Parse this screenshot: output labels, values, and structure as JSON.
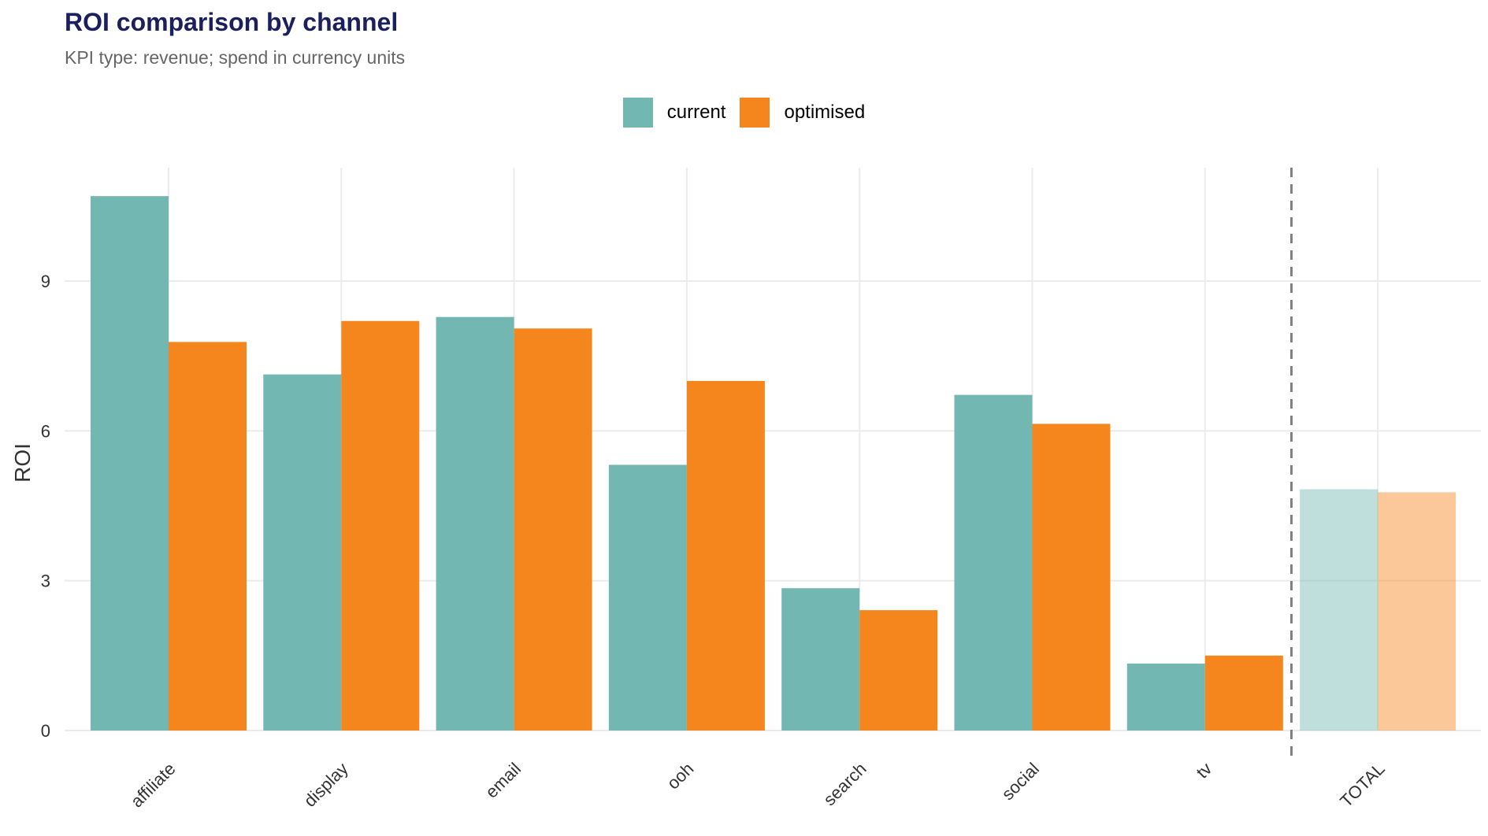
{
  "title": "ROI comparison by channel",
  "subtitle": "KPI type: revenue; spend in currency units",
  "legend": [
    {
      "label": "current",
      "color": "#72b7b2"
    },
    {
      "label": "optimised",
      "color": "#f5851d"
    }
  ],
  "chart_data": {
    "type": "bar",
    "title": "ROI comparison by channel",
    "subtitle": "KPI type: revenue; spend in currency units",
    "xlabel": "",
    "ylabel": "ROI",
    "ylim": [
      0,
      11.3
    ],
    "yticks": [
      0,
      3,
      6,
      9
    ],
    "categories": [
      "affiliate",
      "display",
      "email",
      "ooh",
      "search",
      "social",
      "tv",
      "TOTAL"
    ],
    "series": [
      {
        "name": "current",
        "color": "#72b7b2",
        "values": [
          10.7,
          7.13,
          8.28,
          5.32,
          2.85,
          6.72,
          1.34,
          4.83
        ]
      },
      {
        "name": "optimised",
        "color": "#f5851d",
        "values": [
          7.78,
          8.2,
          8.05,
          7.0,
          2.41,
          6.14,
          1.5,
          4.77
        ]
      }
    ],
    "highlight_faded": [
      "TOTAL"
    ],
    "separator_before": "TOTAL",
    "grid": true,
    "legend_position": "top"
  }
}
